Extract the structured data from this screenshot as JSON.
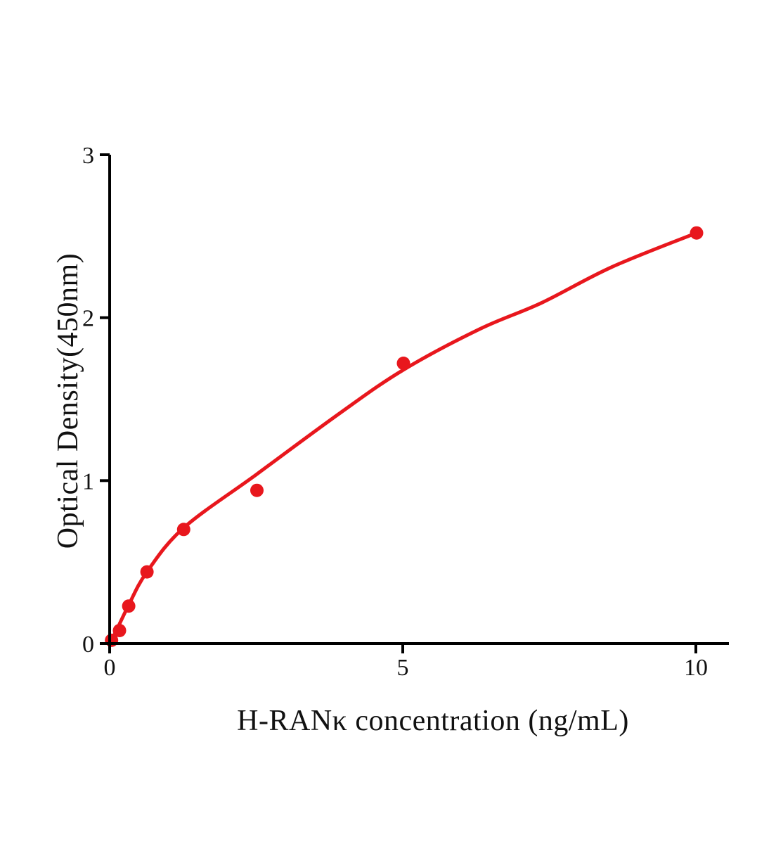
{
  "figure": {
    "background": "#ffffff"
  },
  "chart_data": {
    "type": "scatter",
    "subtype": "ELISA standard curve (scatter points with fitted curve)",
    "title": "",
    "xlabel": "H-RANκ concentration (ng/mL)",
    "ylabel": "Optical Density(450nm)",
    "xlim": [
      0,
      10.55
    ],
    "ylim": [
      0,
      3
    ],
    "x_ticks": [
      0,
      5,
      10
    ],
    "y_ticks": [
      0,
      1,
      2,
      3
    ],
    "grid": false,
    "legend_position": "none",
    "points": [
      [
        0.02,
        0.02
      ],
      [
        0.156,
        0.08
      ],
      [
        0.313,
        0.23
      ],
      [
        0.625,
        0.44
      ],
      [
        1.25,
        0.7
      ],
      [
        2.5,
        0.94
      ],
      [
        5,
        1.72
      ],
      [
        10,
        2.52
      ]
    ],
    "fit_curve": [
      [
        0,
        0
      ],
      [
        0.31,
        0.235
      ],
      [
        0.625,
        0.44
      ],
      [
        1.25,
        0.71
      ],
      [
        2.5,
        1.04
      ],
      [
        3.9,
        1.41
      ],
      [
        5,
        1.68
      ],
      [
        6.3,
        1.93
      ],
      [
        7.35,
        2.09
      ],
      [
        8.55,
        2.31
      ],
      [
        10,
        2.52
      ]
    ],
    "colors": {
      "curve": "#e8171d",
      "points": "#e8171d",
      "axis": "#000000",
      "text": "#111111"
    }
  }
}
